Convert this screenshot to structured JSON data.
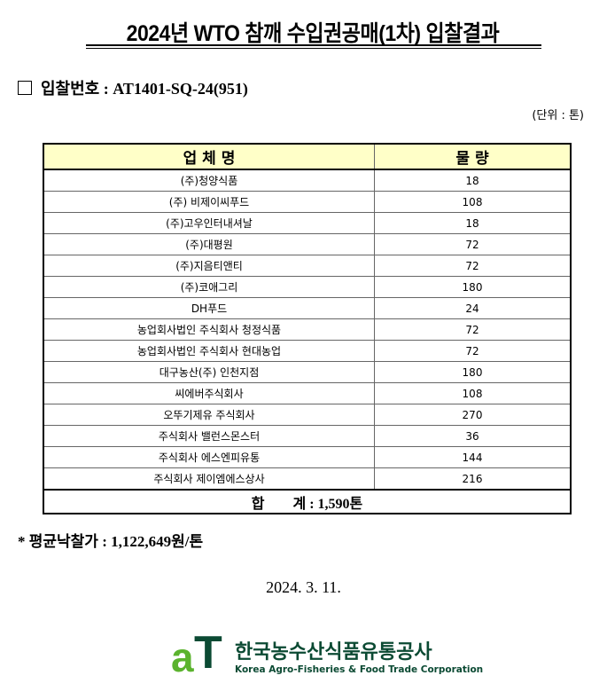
{
  "title": "2024년 WTO 참깨 수입권공매(1차) 입찰결과",
  "bid_number_label": "입찰번호 : AT1401-SQ-24(951)",
  "unit_label": "(단위 : 톤)",
  "table": {
    "headers": [
      "업 체 명",
      "물 량"
    ],
    "rows": [
      {
        "company": "(주)청양식품",
        "qty": "18"
      },
      {
        "company": "(주) 비제이씨푸드",
        "qty": "108"
      },
      {
        "company": "(주)고우인터내셔날",
        "qty": "18"
      },
      {
        "company": "(주)대평원",
        "qty": "72"
      },
      {
        "company": "(주)지음티앤티",
        "qty": "72"
      },
      {
        "company": "(주)코애그리",
        "qty": "180"
      },
      {
        "company": "DH푸드",
        "qty": "24"
      },
      {
        "company": "농업회사법인 주식회사 청정식품",
        "qty": "72"
      },
      {
        "company": "농업회사법인 주식회사 현대농업",
        "qty": "72"
      },
      {
        "company": "대구농산(주) 인천지점",
        "qty": "180"
      },
      {
        "company": "씨에버주식회사",
        "qty": "108"
      },
      {
        "company": "오뚜기제유 주식회사",
        "qty": "270"
      },
      {
        "company": "주식회사 밸런스몬스터",
        "qty": "36"
      },
      {
        "company": "주식회사 에스엔피유통",
        "qty": "144"
      },
      {
        "company": "주식회사 제이엠에스상사",
        "qty": "216"
      }
    ],
    "total": "합　　계 : 1,590톤"
  },
  "average_price": "* 평균낙찰가 : 1,122,649원/톤",
  "date": "2024. 3. 11.",
  "logo": {
    "mark": "aT",
    "name_kr": "한국농수산식품유통공사",
    "name_en": "Korea Agro-Fisheries & Food Trade Corporation"
  },
  "colors": {
    "header_bg": "#ffffc8",
    "logo_green": "#5bb32e",
    "logo_dark": "#0b4a33"
  }
}
